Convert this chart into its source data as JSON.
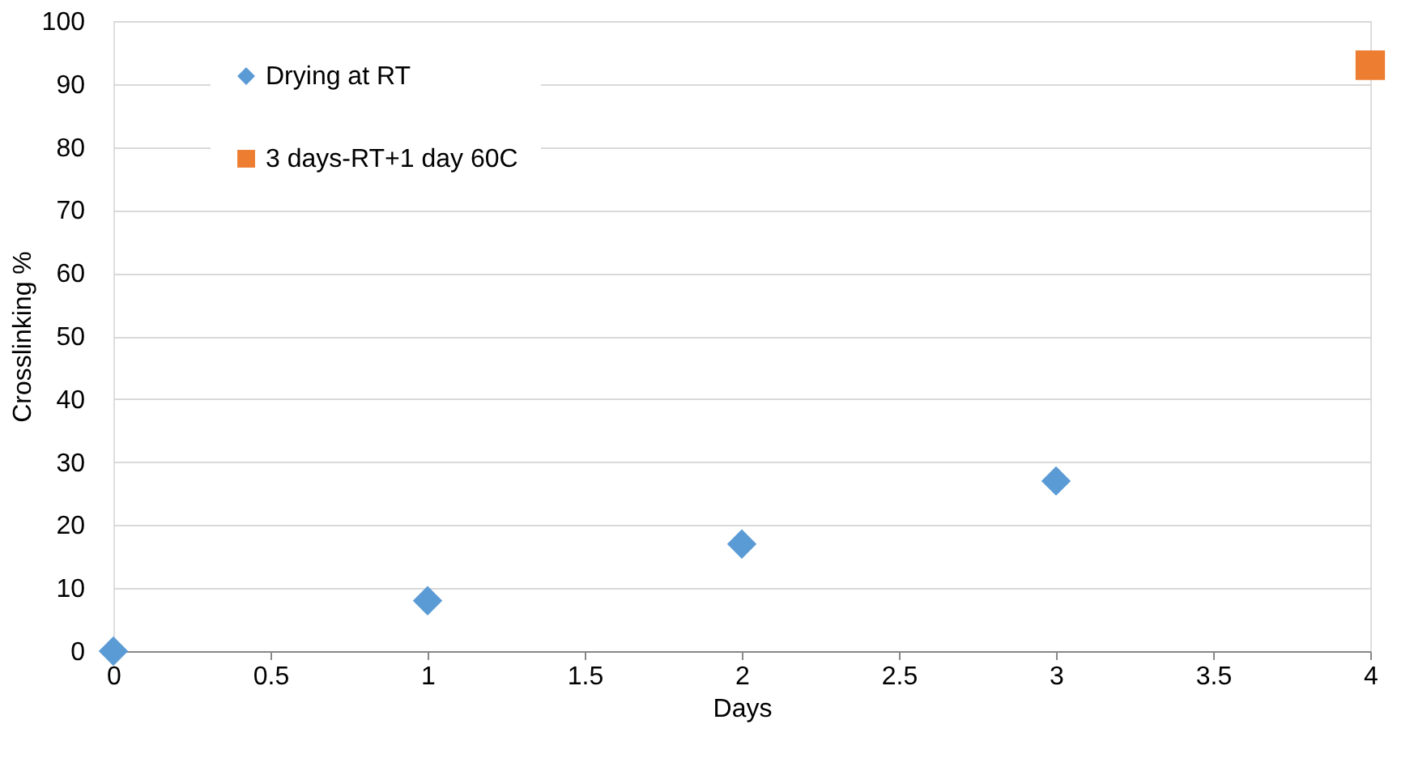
{
  "chart_data": {
    "type": "scatter",
    "xlabel": "Days",
    "ylabel": "Crosslinking %",
    "series": [
      {
        "name": "Drying at RT",
        "color": "#5b9bd5",
        "marker": "diamond",
        "x": [
          0,
          1,
          2,
          3
        ],
        "values": [
          0,
          8,
          17,
          27
        ]
      },
      {
        "name": "3 days-RT+1 day 60C",
        "color": "#ed7d31",
        "marker": "square",
        "x": [
          4
        ],
        "values": [
          93
        ]
      }
    ],
    "xlim": [
      0,
      4
    ],
    "xticks": [
      0,
      0.5,
      1,
      1.5,
      2,
      2.5,
      3,
      3.5,
      4
    ],
    "ylim": [
      0,
      100
    ],
    "yticks": [
      0,
      10,
      20,
      30,
      40,
      50,
      60,
      70,
      80,
      90,
      100
    ],
    "grid": "y",
    "legend": "top left"
  }
}
